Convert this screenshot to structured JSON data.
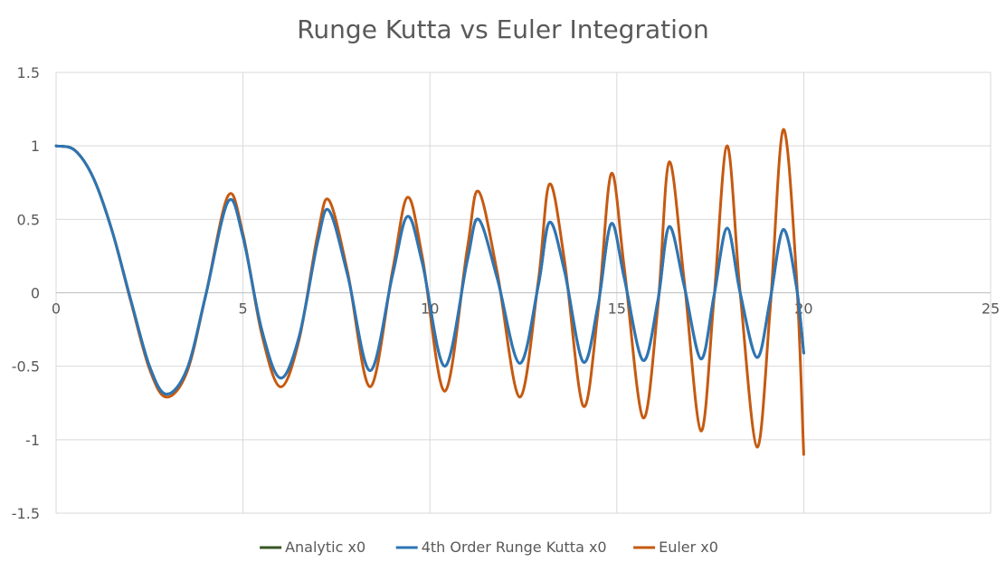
{
  "chart_data": {
    "type": "line",
    "title": "Runge Kutta vs Euler Integration",
    "xlabel": "",
    "ylabel": "",
    "xlim": [
      0,
      25
    ],
    "ylim": [
      -1.5,
      1.5
    ],
    "x_ticks": [
      0,
      5,
      10,
      15,
      20,
      25
    ],
    "y_ticks": [
      -1.5,
      -1,
      -0.5,
      0,
      0.5,
      1,
      1.5
    ],
    "x_tick_labels": [
      "0",
      "5",
      "10",
      "15",
      "20",
      "25"
    ],
    "y_tick_labels": [
      "-1.5",
      "-1",
      "-0.5",
      "0",
      "0.5",
      "1",
      "1.5"
    ],
    "grid": true,
    "legend_position": "bottom",
    "series": [
      {
        "name": "Analytic x0",
        "color": "#375623",
        "x": [
          0,
          0.5,
          1,
          1.5,
          2,
          2.5,
          2.95,
          3.5,
          4,
          4.6,
          5,
          5.5,
          6.0,
          6.5,
          7,
          7.3,
          7.8,
          8.4,
          9,
          9.4,
          9.8,
          10.4,
          11,
          11.3,
          11.8,
          12.4,
          12.9,
          13.2,
          13.6,
          14.1,
          14.5,
          14.85,
          15.2,
          15.7,
          16.1,
          16.4,
          16.8,
          17.25,
          17.6,
          17.95,
          18.3,
          18.75,
          19.1,
          19.45,
          19.8,
          20
        ],
        "y": [
          1.0,
          0.97,
          0.78,
          0.42,
          -0.05,
          -0.5,
          -0.69,
          -0.52,
          -0.02,
          0.62,
          0.38,
          -0.25,
          -0.58,
          -0.3,
          0.35,
          0.56,
          0.12,
          -0.53,
          0.12,
          0.52,
          0.2,
          -0.5,
          0.22,
          0.5,
          0.1,
          -0.48,
          0.05,
          0.48,
          0.15,
          -0.47,
          -0.08,
          0.47,
          0.1,
          -0.46,
          -0.05,
          0.45,
          0.05,
          -0.45,
          -0.02,
          0.44,
          0.0,
          -0.44,
          -0.05,
          0.43,
          0.05,
          -0.41
        ]
      },
      {
        "name": "4th Order Runge Kutta x0",
        "color": "#2e75b6",
        "x": [
          0,
          0.5,
          1,
          1.5,
          2,
          2.5,
          2.95,
          3.5,
          4,
          4.6,
          5,
          5.5,
          6.0,
          6.5,
          7,
          7.3,
          7.8,
          8.4,
          9,
          9.4,
          9.8,
          10.4,
          11,
          11.3,
          11.8,
          12.4,
          12.9,
          13.2,
          13.6,
          14.1,
          14.5,
          14.85,
          15.2,
          15.7,
          16.1,
          16.4,
          16.8,
          17.25,
          17.6,
          17.95,
          18.3,
          18.75,
          19.1,
          19.45,
          19.8,
          20
        ],
        "y": [
          1.0,
          0.97,
          0.78,
          0.42,
          -0.05,
          -0.5,
          -0.69,
          -0.52,
          -0.02,
          0.62,
          0.38,
          -0.25,
          -0.58,
          -0.3,
          0.35,
          0.56,
          0.12,
          -0.53,
          0.12,
          0.52,
          0.2,
          -0.5,
          0.22,
          0.5,
          0.1,
          -0.48,
          0.05,
          0.48,
          0.15,
          -0.47,
          -0.08,
          0.47,
          0.1,
          -0.46,
          -0.05,
          0.45,
          0.05,
          -0.45,
          -0.02,
          0.44,
          0.0,
          -0.44,
          -0.05,
          0.43,
          0.05,
          -0.41
        ]
      },
      {
        "name": "Euler x0",
        "color": "#c55a11",
        "x": [
          0,
          0.5,
          1,
          1.5,
          2,
          2.5,
          2.95,
          3.5,
          4,
          4.6,
          5,
          5.5,
          6.0,
          6.5,
          7,
          7.3,
          7.8,
          8.4,
          9,
          9.4,
          9.8,
          10.4,
          11,
          11.3,
          11.8,
          12.4,
          12.9,
          13.2,
          13.6,
          14.1,
          14.5,
          14.85,
          15.2,
          15.7,
          16.1,
          16.4,
          16.8,
          17.25,
          17.6,
          17.95,
          18.3,
          18.75,
          19.1,
          19.45,
          19.8,
          20
        ],
        "y": [
          1.0,
          0.97,
          0.78,
          0.42,
          -0.06,
          -0.52,
          -0.71,
          -0.54,
          -0.02,
          0.66,
          0.4,
          -0.28,
          -0.64,
          -0.32,
          0.4,
          0.63,
          0.14,
          -0.64,
          0.15,
          0.65,
          0.24,
          -0.67,
          0.3,
          0.69,
          0.14,
          -0.71,
          0.08,
          0.74,
          0.22,
          -0.77,
          -0.12,
          0.81,
          0.17,
          -0.85,
          -0.09,
          0.89,
          0.09,
          -0.94,
          -0.04,
          1.0,
          0.0,
          -1.05,
          -0.12,
          1.11,
          0.14,
          -1.1
        ]
      }
    ]
  }
}
